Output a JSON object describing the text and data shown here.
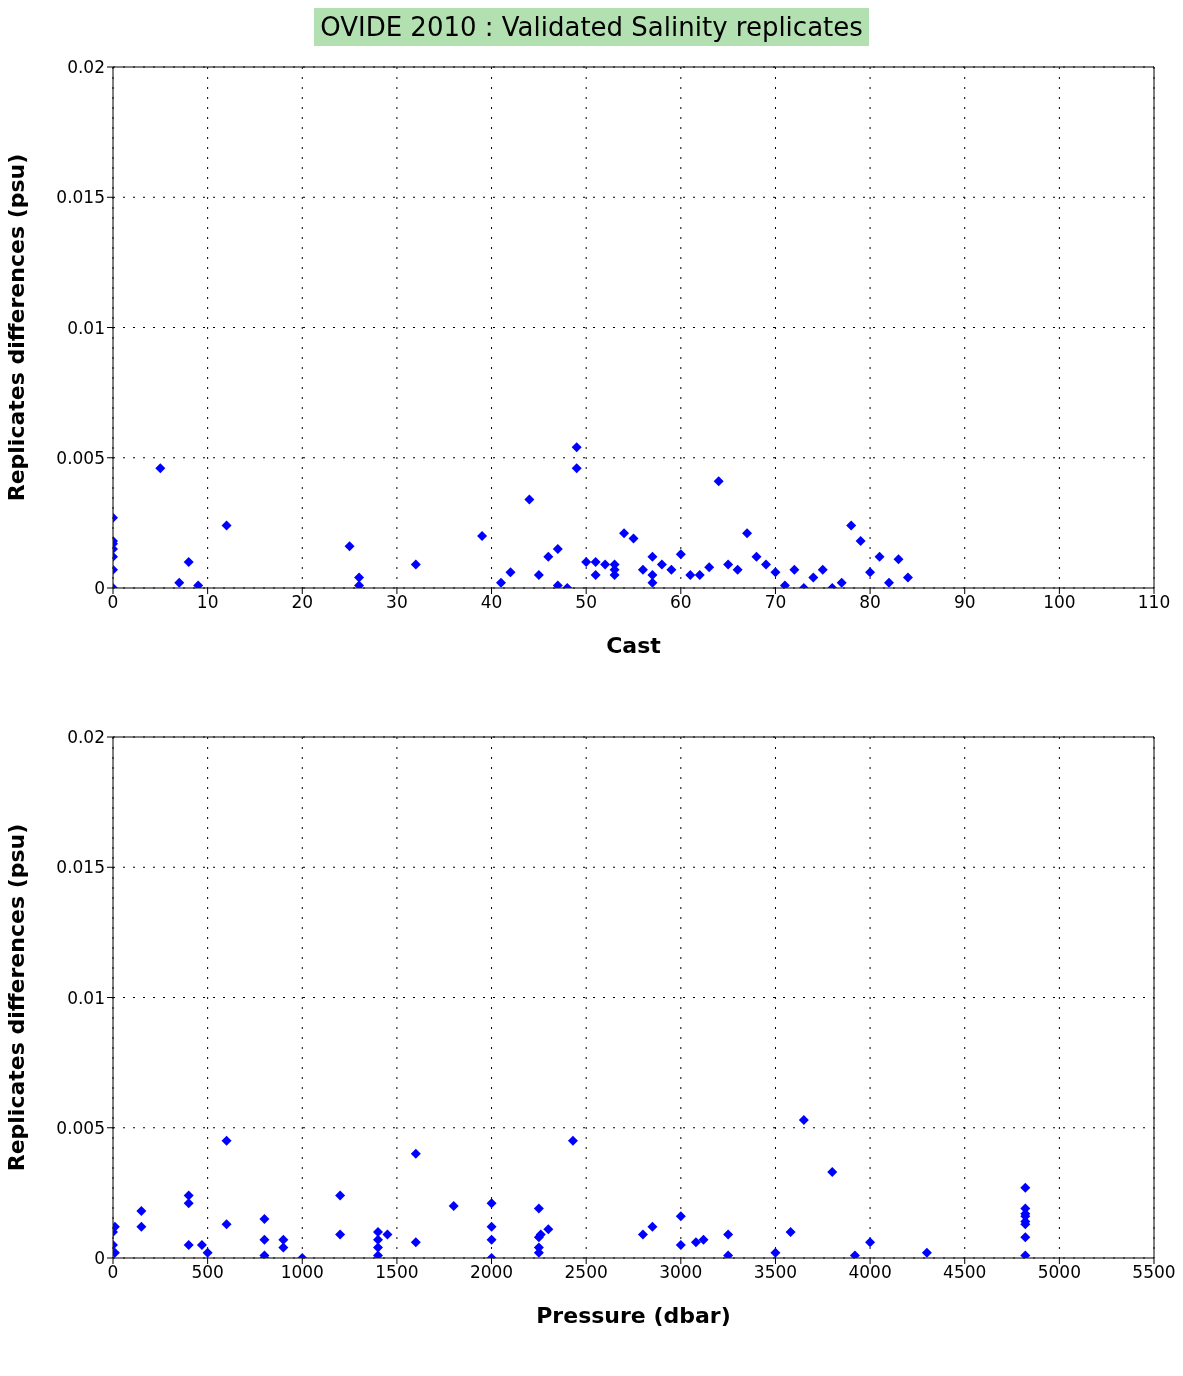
{
  "chart_data": [
    {
      "type": "scatter",
      "title": "OVIDE 2010 : Validated Salinity replicates",
      "xlabel": "Cast",
      "ylabel": "Replicates differences (psu)",
      "marker": "diamond",
      "grid": true,
      "color": "#0000ff",
      "x": [
        0,
        0,
        0,
        0,
        0,
        0,
        0,
        5,
        7,
        8,
        9,
        12,
        25,
        26,
        26,
        32,
        39,
        41,
        42,
        44,
        45,
        46,
        47,
        47,
        48,
        49,
        49,
        50,
        51,
        51,
        52,
        53,
        53,
        53,
        54,
        55,
        56,
        57,
        57,
        57,
        58,
        59,
        60,
        61,
        62,
        63,
        64,
        65,
        66,
        67,
        68,
        69,
        70,
        71,
        72,
        73,
        74,
        75,
        76,
        77,
        78,
        79,
        80,
        81,
        82,
        83,
        84
      ],
      "values": [
        0.0027,
        0.0018,
        0.0017,
        0.0015,
        0.0012,
        0.0007,
        0,
        0.0046,
        0.0002,
        0.001,
        0.0001,
        0.0024,
        0.0016,
        0.0004,
        0.0001,
        0.0009,
        0.002,
        0.0002,
        0.0006,
        0.0034,
        0.0005,
        0.0012,
        0.0015,
        0.0001,
        0,
        0.0054,
        0.0046,
        0.001,
        0.001,
        0.0005,
        0.0009,
        0.0009,
        0.0007,
        0.0005,
        0.0021,
        0.0019,
        0.0007,
        0.0012,
        0.0005,
        0.0002,
        0.0009,
        0.0007,
        0.0013,
        0.0005,
        0.0005,
        0.0008,
        0.0041,
        0.0009,
        0.0007,
        0.0021,
        0.0012,
        0.0009,
        0.0006,
        0.0001,
        0.0007,
        0,
        0.0004,
        0.0007,
        0,
        0.0002,
        0.0024,
        0.0018,
        0.0006,
        0.0012,
        0.0002,
        0.0011,
        0.0004
      ],
      "xlim": [
        0,
        110
      ],
      "xticks": [
        0,
        10,
        20,
        30,
        40,
        50,
        60,
        70,
        80,
        90,
        100,
        110
      ],
      "ylim": [
        0,
        0.02
      ],
      "yticks": [
        0,
        0.005,
        0.01,
        0.015,
        0.02
      ]
    },
    {
      "type": "scatter",
      "xlabel": "Pressure (dbar)",
      "ylabel": "Replicates differences (psu)",
      "marker": "diamond",
      "grid": true,
      "color": "#0000ff",
      "x": [
        10,
        0,
        0,
        10,
        150,
        150,
        400,
        400,
        400,
        470,
        500,
        600,
        600,
        800,
        800,
        800,
        800,
        900,
        900,
        1000,
        1200,
        1200,
        1400,
        1400,
        1400,
        1400,
        1450,
        1600,
        1600,
        1800,
        2000,
        2000,
        2000,
        2000,
        2250,
        2250,
        2250,
        2250,
        2260,
        2300,
        2430,
        2800,
        2850,
        3000,
        3000,
        3080,
        3120,
        3250,
        3250,
        3500,
        3580,
        3650,
        3800,
        3920,
        4000,
        4300,
        4820,
        4820,
        4820,
        4820,
        4820,
        4820,
        4820,
        4820
      ],
      "values": [
        0.0012,
        0.001,
        0.0005,
        0.0002,
        0.0018,
        0.0012,
        0.0024,
        0.0021,
        0.0005,
        0.0005,
        0.0002,
        0.0045,
        0.0013,
        0.0015,
        0.0007,
        0.0001,
        0,
        0.0007,
        0.0004,
        0,
        0.0024,
        0.0009,
        0.001,
        0.0007,
        0.0004,
        0.0001,
        0.0009,
        0.004,
        0.0006,
        0.002,
        0.0021,
        0.0012,
        0.0007,
        0,
        0.0019,
        0.0008,
        0.0004,
        0.0002,
        0.0009,
        0.0011,
        0.0045,
        0.0009,
        0.0012,
        0.0016,
        0.0005,
        0.0006,
        0.0007,
        0.0009,
        0.0001,
        0.0002,
        0.001,
        0.0053,
        0.0033,
        0.0001,
        0.0006,
        0.0002,
        0.0027,
        0.0019,
        0.0017,
        0.0016,
        0.0014,
        0.0013,
        0.0008,
        0.0001
      ],
      "xlim": [
        0,
        5500
      ],
      "xticks": [
        0,
        500,
        1000,
        1500,
        2000,
        2500,
        3000,
        3500,
        4000,
        4500,
        5000,
        5500
      ],
      "ylim": [
        0,
        0.02
      ],
      "yticks": [
        0,
        0.005,
        0.01,
        0.015,
        0.02
      ]
    }
  ]
}
